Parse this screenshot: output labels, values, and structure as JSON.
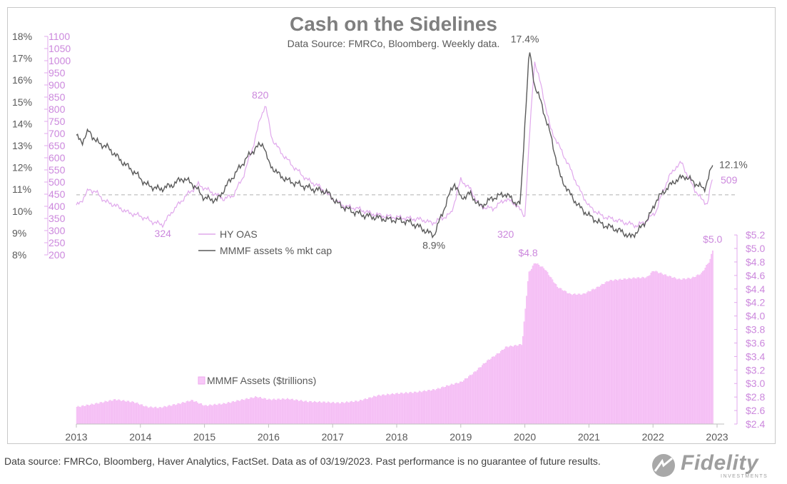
{
  "header": {
    "title": "Cash on the Sidelines",
    "subtitle": "Data Source: FMRCo, Bloomberg.  Weekly data."
  },
  "footer": {
    "note": "Data source: FMRCo, Bloomberg, Haver Analytics, FactSet. Data as of 03/19/2023. Past performance is no guarantee of future results.",
    "logo_text": "Fidelity",
    "logo_subtext": "INVESTMENTS"
  },
  "colors": {
    "oas": "#e0a8ec",
    "oas_label": "#cc88dd",
    "mmmf_pct": "#5a5a5a",
    "bars": "#f8c8f8",
    "bar_edge": "#eeaaee",
    "axis_text": "#595959",
    "ref_line": "#c0c0c0"
  },
  "chart_data": [
    {
      "type": "line",
      "panel": "top",
      "title": "Cash on the Sidelines",
      "left_axis": {
        "ylim": [
          8,
          18
        ],
        "ticks": [
          "8%",
          "9%",
          "10%",
          "11%",
          "12%",
          "13%",
          "14%",
          "15%",
          "16%",
          "17%",
          "18%"
        ]
      },
      "second_axis": {
        "ylim": [
          200,
          1100
        ],
        "ticks": [
          "200",
          "250",
          "300",
          "350",
          "400",
          "450",
          "500",
          "550",
          "600",
          "650",
          "700",
          "750",
          "800",
          "850",
          "900",
          "950",
          "1000",
          "1050",
          "1100"
        ]
      },
      "x_ticks": [
        "2013",
        "2014",
        "2015",
        "2016",
        "2017",
        "2018",
        "2019",
        "2020",
        "2021",
        "2022",
        "2023"
      ],
      "reference_line": {
        "value_pct": 10.75,
        "style": "dashed"
      },
      "legend": {
        "position": "lower-left",
        "entries": [
          "HY OAS",
          "MMMF assets % mkt cap"
        ]
      },
      "series": [
        {
          "name": "HY OAS",
          "axis": "second",
          "x": [
            2013.0,
            2013.1,
            2013.2,
            2013.3,
            2013.45,
            2013.6,
            2013.8,
            2014.0,
            2014.2,
            2014.35,
            2014.5,
            2014.7,
            2014.9,
            2015.1,
            2015.3,
            2015.45,
            2015.6,
            2015.75,
            2015.87,
            2015.95,
            2016.05,
            2016.2,
            2016.4,
            2016.6,
            2016.8,
            2017.0,
            2017.2,
            2017.4,
            2017.6,
            2017.8,
            2018.0,
            2018.2,
            2018.4,
            2018.55,
            2018.7,
            2018.85,
            2019.0,
            2019.15,
            2019.3,
            2019.5,
            2019.7,
            2019.85,
            2020.0,
            2020.08,
            2020.15,
            2020.25,
            2020.4,
            2020.55,
            2020.7,
            2020.85,
            2021.0,
            2021.2,
            2021.4,
            2021.6,
            2021.75,
            2021.9,
            2022.05,
            2022.15,
            2022.25,
            2022.35,
            2022.45,
            2022.55,
            2022.65,
            2022.75,
            2022.85,
            2022.92
          ],
          "y": [
            400,
            430,
            470,
            460,
            420,
            405,
            375,
            360,
            335,
            324,
            380,
            440,
            490,
            460,
            430,
            445,
            520,
            640,
            760,
            820,
            680,
            620,
            560,
            510,
            480,
            430,
            400,
            390,
            370,
            360,
            355,
            350,
            345,
            330,
            350,
            370,
            510,
            470,
            400,
            390,
            430,
            410,
            360,
            720,
            1000,
            900,
            720,
            640,
            560,
            470,
            400,
            360,
            345,
            330,
            320,
            340,
            380,
            460,
            520,
            560,
            580,
            520,
            470,
            430,
            410,
            509
          ]
        },
        {
          "name": "MMMF assets % mkt cap",
          "axis": "left",
          "unit": "%",
          "x": [
            2013.0,
            2013.1,
            2013.2,
            2013.3,
            2013.5,
            2013.7,
            2013.9,
            2014.1,
            2014.3,
            2014.5,
            2014.65,
            2014.8,
            2015.0,
            2015.2,
            2015.35,
            2015.5,
            2015.65,
            2015.8,
            2015.92,
            2016.0,
            2016.15,
            2016.3,
            2016.5,
            2016.7,
            2016.9,
            2017.1,
            2017.3,
            2017.5,
            2017.7,
            2017.9,
            2018.0,
            2018.2,
            2018.4,
            2018.5,
            2018.58,
            2018.7,
            2018.8,
            2018.9,
            2019.0,
            2019.15,
            2019.3,
            2019.5,
            2019.7,
            2019.85,
            2019.93,
            2020.0,
            2020.07,
            2020.15,
            2020.25,
            2020.4,
            2020.55,
            2020.7,
            2020.85,
            2021.0,
            2021.2,
            2021.4,
            2021.55,
            2021.65,
            2021.8,
            2021.95,
            2022.05,
            2022.2,
            2022.35,
            2022.5,
            2022.65,
            2022.8,
            2022.93
          ],
          "y": [
            13.4,
            13.2,
            13.7,
            13.2,
            12.9,
            12.3,
            11.8,
            11.2,
            11.0,
            11.2,
            11.5,
            11.3,
            10.6,
            10.5,
            11.2,
            11.8,
            12.4,
            12.9,
            13.1,
            12.2,
            11.7,
            11.4,
            11.2,
            11.0,
            10.9,
            10.3,
            10.0,
            9.8,
            9.7,
            9.6,
            9.6,
            9.5,
            9.2,
            9.0,
            8.9,
            9.8,
            10.6,
            11.3,
            10.6,
            10.8,
            10.2,
            10.6,
            10.8,
            10.4,
            10.3,
            14.0,
            17.4,
            15.8,
            15.0,
            13.5,
            11.6,
            10.8,
            10.2,
            9.8,
            9.4,
            9.2,
            9.0,
            8.8,
            9.2,
            9.8,
            10.5,
            11.0,
            11.4,
            11.6,
            11.3,
            11.0,
            12.1
          ]
        }
      ],
      "annotations": [
        "820",
        "324",
        "320",
        "17.4%",
        "8.9%",
        "12.1%",
        "509"
      ]
    },
    {
      "type": "bar",
      "panel": "bottom",
      "series_name": "MMMF Assets ($trillions)",
      "right_axis": {
        "ylim": [
          2.4,
          5.2
        ],
        "ticks": [
          "$2.4",
          "$2.6",
          "$2.8",
          "$3.0",
          "$3.2",
          "$3.4",
          "$3.6",
          "$3.8",
          "$4.0",
          "$4.2",
          "$4.4",
          "$4.6",
          "$4.8",
          "$5.0",
          "$5.2"
        ]
      },
      "legend": {
        "position": "middle-left",
        "entries": [
          "MMMF Assets ($trillions)"
        ]
      },
      "x": [
        2013.0,
        2013.3,
        2013.6,
        2013.9,
        2014.1,
        2014.3,
        2014.6,
        2014.8,
        2015.0,
        2015.3,
        2015.6,
        2015.8,
        2016.0,
        2016.3,
        2016.6,
        2016.9,
        2017.1,
        2017.4,
        2017.7,
        2018.0,
        2018.3,
        2018.6,
        2018.8,
        2019.0,
        2019.2,
        2019.4,
        2019.6,
        2019.7,
        2019.85,
        2019.95,
        2020.05,
        2020.15,
        2020.3,
        2020.5,
        2020.7,
        2020.9,
        2021.1,
        2021.3,
        2021.5,
        2021.7,
        2021.9,
        2022.0,
        2022.2,
        2022.4,
        2022.6,
        2022.75,
        2022.88,
        2022.93
      ],
      "y": [
        2.65,
        2.7,
        2.76,
        2.72,
        2.65,
        2.64,
        2.7,
        2.75,
        2.67,
        2.7,
        2.76,
        2.8,
        2.76,
        2.77,
        2.73,
        2.72,
        2.71,
        2.74,
        2.82,
        2.85,
        2.87,
        2.91,
        2.97,
        3.02,
        3.16,
        3.33,
        3.46,
        3.54,
        3.56,
        3.58,
        4.63,
        4.79,
        4.7,
        4.43,
        4.32,
        4.32,
        4.41,
        4.52,
        4.54,
        4.56,
        4.57,
        4.67,
        4.6,
        4.54,
        4.56,
        4.63,
        4.82,
        5.0
      ],
      "annotations": [
        "$4.8",
        "$5.0"
      ]
    }
  ]
}
